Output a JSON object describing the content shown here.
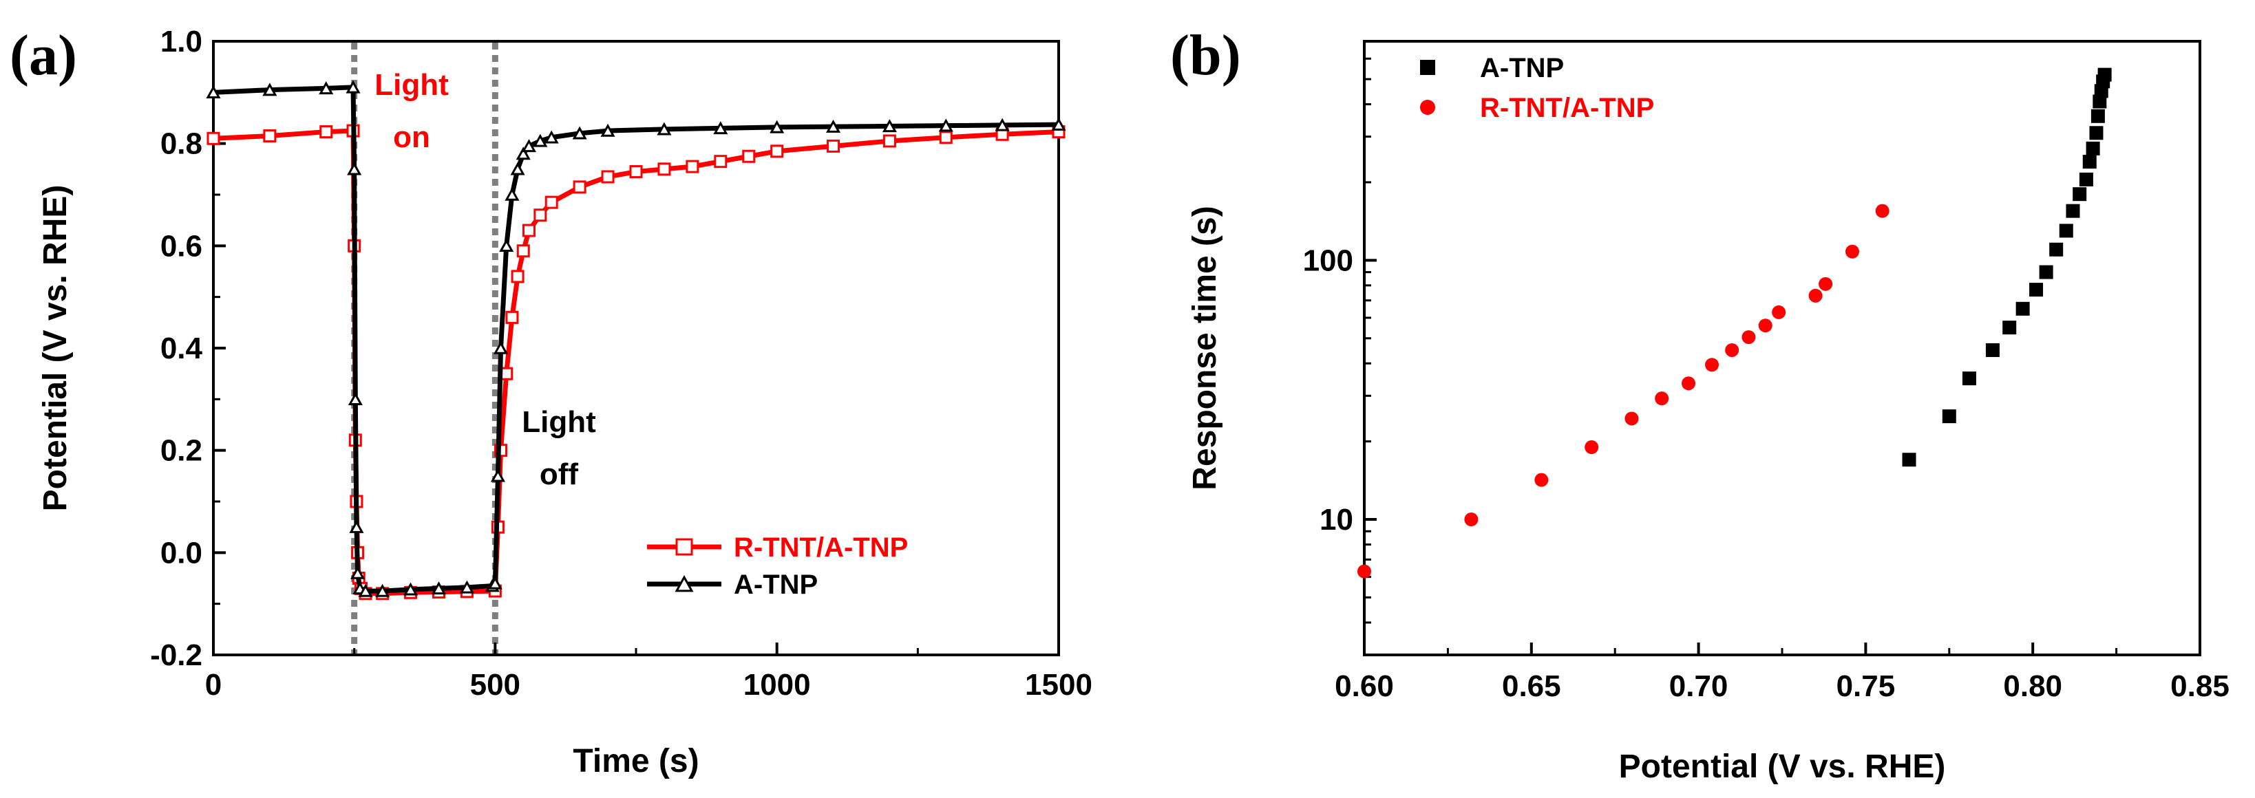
{
  "chart_data": [
    {
      "panel": "(a)",
      "type": "line",
      "title": "",
      "xlabel": "Time (s)",
      "ylabel": "Potential (V vs. RHE)",
      "xlim": [
        0,
        1500
      ],
      "ylim": [
        -0.2,
        1.0
      ],
      "xticks": [
        "0",
        "500",
        "1000",
        "1500"
      ],
      "yticks": [
        "-0.2",
        "0.0",
        "0.2",
        "0.4",
        "0.6",
        "0.8",
        "1.0"
      ],
      "light_on_time": 250,
      "light_off_time": 500,
      "annotations": [
        {
          "lines": [
            "Light",
            "on"
          ],
          "color": "#ff0000"
        },
        {
          "lines": [
            "Light",
            "off"
          ],
          "color": "#000000"
        }
      ],
      "legend": [
        "R-TNT/A-TNP",
        "A-TNP"
      ],
      "legend_position": "lower-right",
      "series": [
        {
          "name": "R-TNT/A-TNP",
          "color": "#ff0000",
          "marker": "open-square",
          "x": [
            0,
            100,
            200,
            248,
            250,
            252,
            254,
            256,
            258,
            262,
            270,
            300,
            350,
            400,
            450,
            500,
            505,
            510,
            520,
            530,
            540,
            550,
            560,
            580,
            600,
            650,
            700,
            750,
            800,
            850,
            900,
            950,
            1000,
            1100,
            1200,
            1300,
            1400,
            1500
          ],
          "y": [
            0.81,
            0.815,
            0.823,
            0.825,
            0.6,
            0.22,
            0.1,
            0.0,
            -0.05,
            -0.07,
            -0.08,
            -0.08,
            -0.078,
            -0.077,
            -0.076,
            -0.075,
            0.05,
            0.2,
            0.35,
            0.46,
            0.54,
            0.59,
            0.63,
            0.66,
            0.685,
            0.715,
            0.735,
            0.745,
            0.75,
            0.755,
            0.765,
            0.775,
            0.785,
            0.795,
            0.805,
            0.812,
            0.818,
            0.823
          ]
        },
        {
          "name": "A-TNP",
          "color": "#000000",
          "marker": "open-triangle",
          "x": [
            0,
            100,
            200,
            248,
            250,
            252,
            254,
            256,
            260,
            270,
            300,
            350,
            400,
            450,
            495,
            500,
            505,
            510,
            520,
            530,
            540,
            550,
            560,
            580,
            600,
            650,
            700,
            800,
            900,
            1000,
            1100,
            1200,
            1300,
            1400,
            1500
          ],
          "y": [
            0.9,
            0.905,
            0.908,
            0.91,
            0.75,
            0.3,
            0.05,
            -0.04,
            -0.07,
            -0.075,
            -0.075,
            -0.072,
            -0.07,
            -0.068,
            -0.065,
            -0.06,
            0.15,
            0.4,
            0.6,
            0.7,
            0.75,
            0.78,
            0.795,
            0.805,
            0.812,
            0.82,
            0.825,
            0.828,
            0.83,
            0.832,
            0.833,
            0.834,
            0.835,
            0.836,
            0.837
          ]
        }
      ]
    },
    {
      "panel": "(b)",
      "type": "scatter",
      "title": "",
      "xlabel": "Potential (V vs. RHE)",
      "ylabel": "Response time (s)",
      "xlim": [
        0.6,
        0.85
      ],
      "ylim": [
        3,
        700
      ],
      "yscale": "log",
      "xticks": [
        "0.60",
        "0.65",
        "0.70",
        "0.75",
        "0.80",
        "0.85"
      ],
      "yticks": [
        "10",
        "100"
      ],
      "legend": [
        "A-TNP",
        "R-TNT/A-TNP"
      ],
      "legend_position": "top-left",
      "series": [
        {
          "name": "A-TNP",
          "color": "#000000",
          "marker": "filled-square",
          "x": [
            0.763,
            0.775,
            0.781,
            0.788,
            0.793,
            0.797,
            0.801,
            0.804,
            0.807,
            0.81,
            0.812,
            0.814,
            0.816,
            0.817,
            0.818,
            0.819,
            0.8195,
            0.82,
            0.8205,
            0.821,
            0.8215
          ],
          "y": [
            17,
            25,
            35,
            45,
            55,
            65,
            77,
            90,
            110,
            130,
            155,
            180,
            205,
            240,
            270,
            310,
            360,
            410,
            450,
            490,
            520
          ]
        },
        {
          "name": "R-TNT/A-TNP",
          "color": "#ff0000",
          "marker": "filled-circle",
          "x": [
            0.6,
            0.632,
            0.653,
            0.668,
            0.68,
            0.689,
            0.697,
            0.704,
            0.71,
            0.715,
            0.72,
            0.724,
            0.735,
            0.738,
            0.746,
            0.755
          ],
          "y": [
            6.3,
            10,
            14.2,
            19,
            24.5,
            29.3,
            33.5,
            39.5,
            45,
            50.5,
            56,
            63,
            73,
            81,
            108,
            155
          ]
        }
      ]
    }
  ]
}
